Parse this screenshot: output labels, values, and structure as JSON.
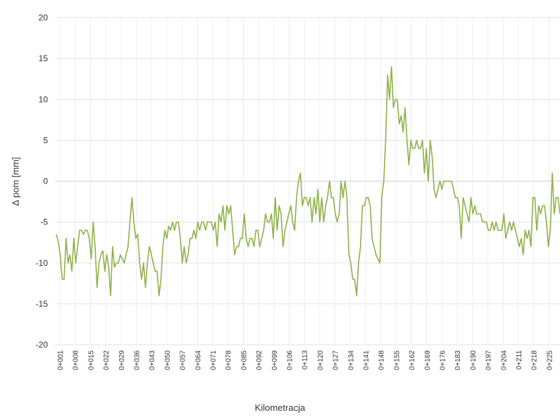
{
  "chart_data": {
    "type": "line",
    "xlabel": "Kilometracja",
    "ylabel": "Δ pom  [mm]",
    "ylim": [
      -20,
      20
    ],
    "yticks": [
      20,
      15,
      10,
      5,
      0,
      -5,
      -10,
      -15,
      -20
    ],
    "grid": true,
    "legend": "none",
    "line_color": "#8fb24a",
    "x_ticks": [
      "0+001",
      "0+008",
      "0+015",
      "0+022",
      "0+029",
      "0+036",
      "0+043",
      "0+050",
      "0+057",
      "0+064",
      "0+071",
      "0+078",
      "0+085",
      "0+092",
      "0+099",
      "0+106",
      "0+113",
      "0+120",
      "0+127",
      "0+134",
      "0+141",
      "0+148",
      "0+155",
      "0+162",
      "0+169",
      "0+176",
      "0+183",
      "0+190",
      "0+197",
      "0+204",
      "0+211",
      "0+218",
      "0+225",
      "0+232",
      "0+239",
      "0+246"
    ],
    "series": [
      {
        "values": [
          -6.5,
          -7.5,
          -9,
          -12,
          -12,
          -7,
          -10,
          -9,
          -11,
          -7,
          -10,
          -8,
          -6,
          -6,
          -6.5,
          -6,
          -6,
          -7,
          -9.5,
          -5,
          -8,
          -13,
          -10,
          -9,
          -8.5,
          -11,
          -9,
          -10.5,
          -14,
          -8,
          -10.5,
          -10,
          -10,
          -9,
          -9.5,
          -10,
          -9,
          -8,
          -5,
          -2,
          -5,
          -7,
          -6.5,
          -10,
          -12,
          -10,
          -13,
          -10,
          -8,
          -9,
          -10,
          -11,
          -11,
          -14,
          -12,
          -8,
          -6,
          -7,
          -5.5,
          -6,
          -5,
          -6,
          -5,
          -5,
          -7,
          -10,
          -8,
          -10,
          -9,
          -7,
          -7,
          -6,
          -7,
          -5,
          -6,
          -5,
          -5,
          -6,
          -5,
          -5,
          -5,
          -6,
          -5,
          -8,
          -4,
          -5,
          -3,
          -6,
          -3,
          -4,
          -3,
          -6,
          -9,
          -8,
          -8,
          -7,
          -7,
          -4,
          -7,
          -8,
          -7,
          -7,
          -8,
          -6,
          -6,
          -8,
          -7,
          -6,
          -4,
          -5,
          -5,
          -4,
          -7,
          -2,
          -6,
          -3,
          -4,
          -8,
          -6,
          -5,
          -4,
          -3,
          -5,
          -6,
          -2,
          0,
          1,
          -3,
          -2,
          -2,
          -3,
          -2,
          -5,
          -2,
          -4,
          -1,
          -5,
          -2,
          -5,
          -3,
          -2,
          0,
          -2,
          -2,
          -4,
          -5,
          -4,
          0,
          -2,
          0,
          -2,
          -9,
          -10,
          -12,
          -12,
          -14,
          -10,
          -8,
          -3,
          -3,
          -2,
          -2,
          -3,
          -7,
          -8,
          -9,
          -9.5,
          -10,
          -2,
          0,
          5,
          13,
          10,
          14,
          9,
          10,
          10,
          7,
          8,
          6,
          9,
          5,
          2,
          5,
          4,
          4,
          5,
          4,
          4,
          5,
          1,
          4,
          0,
          5,
          3,
          -1,
          -2,
          -1,
          0,
          -1,
          0,
          0,
          0,
          0,
          0,
          -1,
          -2,
          -2,
          -3,
          -7,
          -2,
          -3,
          -4,
          -5,
          -2,
          -4,
          -3,
          -4,
          -4,
          -4,
          -5,
          -5,
          -5,
          -6,
          -6,
          -5,
          -6,
          -5,
          -6,
          -6,
          -6,
          -4,
          -7,
          -6,
          -5,
          -6,
          -5,
          -6,
          -7,
          -8,
          -7,
          -9,
          -6,
          -7,
          -6,
          -8,
          -2,
          -2,
          -6,
          -3,
          -4,
          -3,
          -3,
          -5,
          -8,
          -6,
          1,
          -4,
          -2,
          -2,
          -4
        ]
      }
    ]
  }
}
